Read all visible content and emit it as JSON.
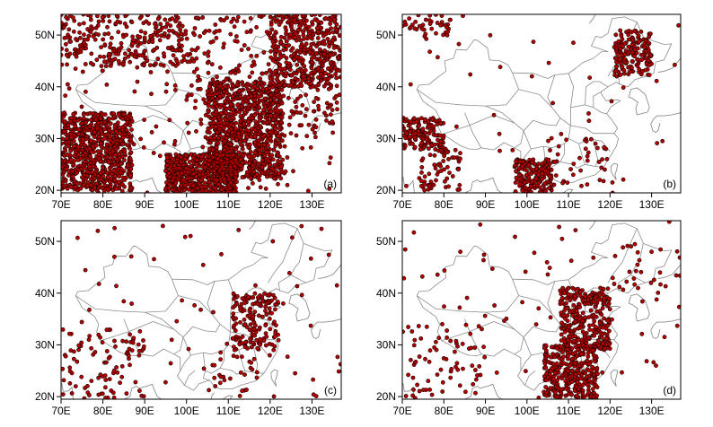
{
  "panels": [
    {
      "id": "a",
      "label": "(a)"
    },
    {
      "id": "b",
      "label": "(b)"
    },
    {
      "id": "c",
      "label": "(c)"
    },
    {
      "id": "d",
      "label": "(d)"
    }
  ],
  "axes": {
    "lon_range": [
      70,
      137
    ],
    "lat_range": [
      19.5,
      54
    ],
    "x_ticks": [
      {
        "value": 70,
        "label": "70E"
      },
      {
        "value": 80,
        "label": "80E"
      },
      {
        "value": 90,
        "label": "90E"
      },
      {
        "value": 100,
        "label": "100E"
      },
      {
        "value": 110,
        "label": "110E"
      },
      {
        "value": 120,
        "label": "120E"
      },
      {
        "value": 130,
        "label": "130E"
      }
    ],
    "y_ticks": [
      {
        "value": 20,
        "label": "20N"
      },
      {
        "value": 30,
        "label": "30N"
      },
      {
        "value": 40,
        "label": "40N"
      },
      {
        "value": 50,
        "label": "50N"
      }
    ]
  },
  "colors": {
    "point_fill": "#b00000",
    "point_stroke": "#1a0000",
    "boundary": "#8c8c8c"
  },
  "point_density": {
    "a": [
      {
        "lon": [
          105,
          123
        ],
        "lat": [
          22,
          41
        ],
        "count": 900
      },
      {
        "lon": [
          70,
          87
        ],
        "lat": [
          20,
          35
        ],
        "count": 750
      },
      {
        "lon": [
          95,
          112
        ],
        "lat": [
          19.5,
          27
        ],
        "count": 600
      },
      {
        "lon": [
          120,
          137
        ],
        "lat": [
          40,
          54
        ],
        "count": 350
      },
      {
        "lon": [
          70,
          100
        ],
        "lat": [
          44,
          54
        ],
        "count": 250
      },
      {
        "lon": [
          100,
          137
        ],
        "lat": [
          30,
          54
        ],
        "count": 300
      },
      {
        "lon": [
          70,
          137
        ],
        "lat": [
          19.5,
          54
        ],
        "count": 200
      }
    ],
    "b": [
      {
        "lon": [
          121,
          130
        ],
        "lat": [
          42,
          51
        ],
        "count": 160
      },
      {
        "lon": [
          70,
          80
        ],
        "lat": [
          28,
          34
        ],
        "count": 150
      },
      {
        "lon": [
          74,
          84
        ],
        "lat": [
          20,
          28
        ],
        "count": 70
      },
      {
        "lon": [
          97,
          106
        ],
        "lat": [
          19.5,
          26
        ],
        "count": 170
      },
      {
        "lon": [
          70,
          82
        ],
        "lat": [
          49,
          54
        ],
        "count": 40
      },
      {
        "lon": [
          105,
          121
        ],
        "lat": [
          21,
          31
        ],
        "count": 45
      },
      {
        "lon": [
          70,
          137
        ],
        "lat": [
          19.5,
          54
        ],
        "count": 35
      }
    ],
    "c": [
      {
        "lon": [
          111,
          122
        ],
        "lat": [
          29,
          40
        ],
        "count": 160
      },
      {
        "lon": [
          70,
          90
        ],
        "lat": [
          19.5,
          33
        ],
        "count": 90
      },
      {
        "lon": [
          105,
          117
        ],
        "lat": [
          21,
          29
        ],
        "count": 25
      },
      {
        "lon": [
          70,
          137
        ],
        "lat": [
          19.5,
          54
        ],
        "count": 70
      }
    ],
    "d": [
      {
        "lon": [
          108,
          120
        ],
        "lat": [
          29,
          41
        ],
        "count": 300
      },
      {
        "lon": [
          104,
          117
        ],
        "lat": [
          19.5,
          30
        ],
        "count": 320
      },
      {
        "lon": [
          70,
          90
        ],
        "lat": [
          19.5,
          34
        ],
        "count": 60
      },
      {
        "lon": [
          120,
          137
        ],
        "lat": [
          40,
          50
        ],
        "count": 25
      },
      {
        "lon": [
          70,
          137
        ],
        "lat": [
          19.5,
          54
        ],
        "count": 80
      }
    ]
  }
}
